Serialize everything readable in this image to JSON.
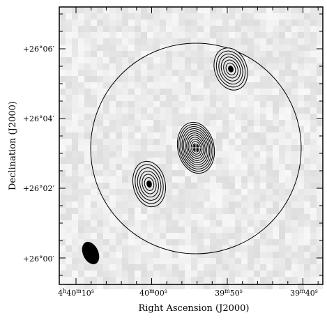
{
  "axes": {
    "x_label": "Right Ascension (J2000)",
    "y_label": "Declination (J2000)",
    "x_ticks": [
      {
        "h": "4",
        "hu": "h",
        "m": "40",
        "mu": "m",
        "s": "10",
        "su": "s"
      },
      {
        "h": "",
        "hu": "",
        "m": "40",
        "mu": "m",
        "s": "00",
        "su": "s"
      },
      {
        "h": "",
        "hu": "",
        "m": "39",
        "mu": "m",
        "s": "50",
        "su": "s"
      },
      {
        "h": "",
        "hu": "",
        "m": "39",
        "mu": "m",
        "s": "40",
        "su": "s"
      }
    ],
    "y_ticks": [
      "+26°06′",
      "+26°04′",
      "+26°02′",
      "+26°00′"
    ]
  },
  "chart_data": {
    "type": "contour",
    "title": "",
    "xlabel": "Right Ascension (J2000)",
    "ylabel": "Declination (J2000)",
    "xlim_ra": [
      "4h40m14s",
      "4h39m39s"
    ],
    "ylim_dec": [
      "+25°59′15″",
      "+26°07′15″"
    ],
    "sources": [
      {
        "name_shown": "",
        "ra": "4h39m56.5s",
        "dec": "+26°03′05″",
        "contour_levels": 12,
        "marker": "cross"
      },
      {
        "name_shown": "",
        "ra": "4h40m00s",
        "dec": "+26°02′10″",
        "contour_levels": 7,
        "marker": "none"
      },
      {
        "name_shown": "",
        "ra": "4h39m50s",
        "dec": "+26°05′25″",
        "contour_levels": 7,
        "marker": "none"
      }
    ],
    "primary_beam_circle": {
      "center_ra": "4h39m56.5s",
      "center_dec": "+26°03′07″"
    },
    "synthesized_beam": {
      "shape": "filled ellipse",
      "position": "bottom-left"
    },
    "background": "grey noise"
  }
}
